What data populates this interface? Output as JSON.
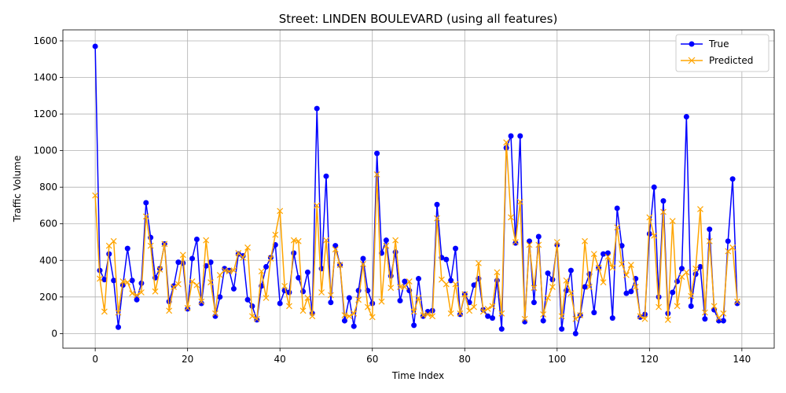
{
  "chart_data": {
    "type": "line",
    "title": "Street: LINDEN BOULEVARD (using all features)",
    "xlabel": "Time Index",
    "ylabel": "Traffic Volume",
    "xlim": [
      -7,
      147
    ],
    "ylim": [
      -80,
      1660
    ],
    "x_ticks": [
      0,
      20,
      40,
      60,
      80,
      100,
      120,
      140
    ],
    "y_ticks": [
      0,
      200,
      400,
      600,
      800,
      1000,
      1200,
      1400,
      1600
    ],
    "grid": true,
    "legend_position": "top-right",
    "series": [
      {
        "name": "True",
        "color": "#0000ff",
        "marker": "circle",
        "values": [
          1570,
          345,
          295,
          435,
          290,
          35,
          265,
          465,
          290,
          185,
          275,
          715,
          525,
          305,
          355,
          490,
          175,
          260,
          390,
          385,
          135,
          410,
          515,
          165,
          370,
          390,
          95,
          200,
          355,
          345,
          245,
          435,
          425,
          185,
          150,
          75,
          260,
          365,
          415,
          485,
          165,
          235,
          225,
          440,
          305,
          230,
          335,
          110,
          1230,
          355,
          860,
          170,
          480,
          375,
          70,
          195,
          40,
          235,
          410,
          235,
          165,
          985,
          440,
          510,
          315,
          445,
          180,
          285,
          235,
          45,
          300,
          95,
          120,
          125,
          705,
          415,
          405,
          290,
          465,
          105,
          215,
          170,
          265,
          300,
          130,
          95,
          85,
          290,
          25,
          1015,
          1080,
          495,
          1080,
          65,
          505,
          170,
          530,
          70,
          330,
          295,
          485,
          25,
          235,
          345,
          0,
          100,
          255,
          325,
          115,
          360,
          435,
          440,
          85,
          685,
          480,
          220,
          230,
          300,
          90,
          105,
          545,
          800,
          200,
          725,
          110,
          225,
          285,
          355,
          1185,
          150,
          325,
          365,
          80,
          570,
          130,
          70,
          70,
          505,
          845,
          165
        ]
      },
      {
        "name": "Predicted",
        "color": "#ffa500",
        "marker": "x",
        "values": [
          755,
          300,
          120,
          480,
          505,
          115,
          285,
          280,
          220,
          210,
          225,
          640,
          480,
          230,
          350,
          490,
          125,
          255,
          270,
          430,
          140,
          285,
          265,
          175,
          510,
          280,
          110,
          320,
          345,
          340,
          345,
          440,
          415,
          470,
          95,
          80,
          340,
          195,
          410,
          540,
          670,
          260,
          150,
          510,
          505,
          125,
          195,
          95,
          700,
          225,
          510,
          210,
          460,
          375,
          100,
          95,
          110,
          185,
          380,
          145,
          90,
          870,
          175,
          480,
          250,
          510,
          255,
          255,
          285,
          120,
          195,
          100,
          105,
          95,
          630,
          295,
          270,
          110,
          270,
          110,
          215,
          125,
          145,
          385,
          120,
          135,
          150,
          335,
          110,
          1045,
          635,
          500,
          720,
          80,
          485,
          250,
          485,
          105,
          195,
          255,
          500,
          95,
          290,
          220,
          80,
          100,
          505,
          255,
          435,
          360,
          280,
          420,
          360,
          580,
          380,
          320,
          375,
          255,
          95,
          80,
          635,
          535,
          145,
          665,
          75,
          615,
          150,
          310,
          335,
          205,
          355,
          680,
          115,
          505,
          150,
          85,
          110,
          450,
          470,
          175
        ]
      }
    ]
  }
}
